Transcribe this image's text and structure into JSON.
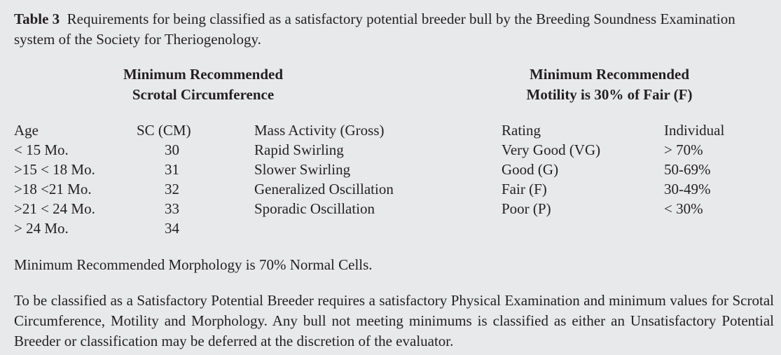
{
  "caption": {
    "label": "Table 3",
    "text": "Requirements for being classified as a satisfactory potential breeder bull by the Breeding Soundness Examination system of the Society for Theriogenology."
  },
  "headers": {
    "scrotal_line1": "Minimum Recommended",
    "scrotal_line2": "Scrotal Circumference",
    "motility_line1": "Minimum Recommended",
    "motility_line2": "Motility is 30% of Fair (F)"
  },
  "scrotal_table": {
    "col_age": "Age",
    "col_sc": "SC (CM)",
    "rows": [
      {
        "age": "< 15 Mo.",
        "sc": "30"
      },
      {
        "age": ">15 < 18 Mo.",
        "sc": "31"
      },
      {
        "age": ">18 <21 Mo.",
        "sc": "32"
      },
      {
        "age": ">21 < 24 Mo.",
        "sc": "33"
      },
      {
        "age": "> 24 Mo.",
        "sc": "34"
      }
    ]
  },
  "motility_table": {
    "col_mass": "Mass Activity (Gross)",
    "col_rating": "Rating",
    "col_individual": "Individual",
    "rows": [
      {
        "mass": "Rapid Swirling",
        "rating": "Very Good (VG)",
        "individual": "> 70%"
      },
      {
        "mass": "Slower Swirling",
        "rating": "Good (G)",
        "individual": "50-69%"
      },
      {
        "mass": "Generalized Oscillation",
        "rating": "Fair (F)",
        "individual": "30-49%"
      },
      {
        "mass": "Sporadic Oscillation",
        "rating": "Poor (P)",
        "individual": "< 30%"
      }
    ]
  },
  "notes": {
    "morphology": "Minimum Recommended Morphology is 70% Normal Cells.",
    "classification": "To be classified as a Satisfactory Potential Breeder requires a satisfactory Physical Examination and minimum values for Scrotal Circumference, Motility and Morphology.  Any bull not meeting minimums is classified as either an Unsatisfactory Potential Breeder or classification may be deferred at the discretion of the evaluator."
  }
}
